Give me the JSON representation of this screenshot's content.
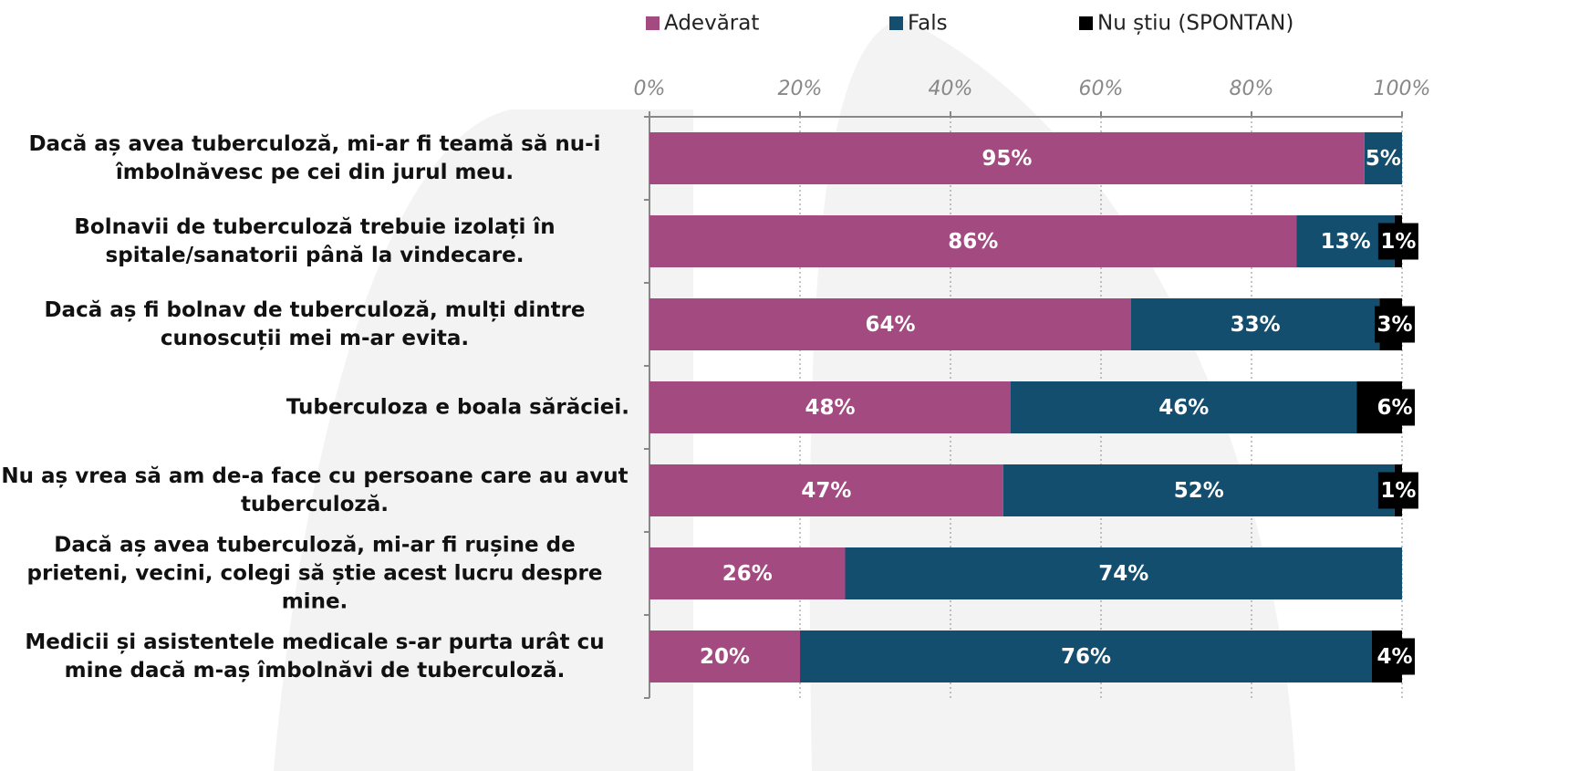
{
  "chart_data": {
    "type": "stacked-bar-horizontal",
    "categories": [
      "Dacă aș avea tuberculoză, mi-ar fi teamă să nu-i îmbolnăvesc pe cei din jurul meu.",
      "Bolnavii de tuberculoză trebuie izolați în spitale/sanatorii până la vindecare.",
      "Dacă aș fi bolnav de tuberculoză, mulți dintre cunoscuții mei m-ar evita.",
      "Tuberculoza e boala sărăciei.",
      "Nu aș vrea să am de-a face cu persoane care au avut tuberculoză.",
      "Dacă aș avea tuberculoză, mi-ar fi rușine de prieteni, vecini, colegi să știe acest lucru despre mine.",
      "Medicii și asistentele medicale s-ar purta urât cu mine dacă m-aș îmbolnăvi de tuberculoză."
    ],
    "series": [
      {
        "name": "Adevărat",
        "color": "#a34a80",
        "values": [
          95,
          86,
          64,
          48,
          47,
          26,
          20
        ],
        "value_labels": [
          "95%",
          "86%",
          "64%",
          "48%",
          "47%",
          "26%",
          "20%"
        ]
      },
      {
        "name": "Fals",
        "color": "#134e6f",
        "values": [
          5,
          13,
          33,
          46,
          52,
          74,
          76
        ],
        "value_labels": [
          "5%",
          "13%",
          "33%",
          "46%",
          "52%",
          "74%",
          "76%"
        ]
      },
      {
        "name": "Nu știu (SPONTAN)",
        "color": "#000000",
        "values": [
          0,
          1,
          3,
          6,
          1,
          0,
          4
        ],
        "value_labels": [
          null,
          "1%",
          "3%",
          "6%",
          "1%",
          null,
          "4%"
        ]
      }
    ],
    "xlim": [
      0,
      100
    ],
    "xticks": [
      {
        "value": 0,
        "label": "0%"
      },
      {
        "value": 20,
        "label": "20%"
      },
      {
        "value": 40,
        "label": "40%"
      },
      {
        "value": 60,
        "label": "60%"
      },
      {
        "value": 80,
        "label": "80%"
      },
      {
        "value": 100,
        "label": "100%"
      }
    ],
    "grid": true
  }
}
